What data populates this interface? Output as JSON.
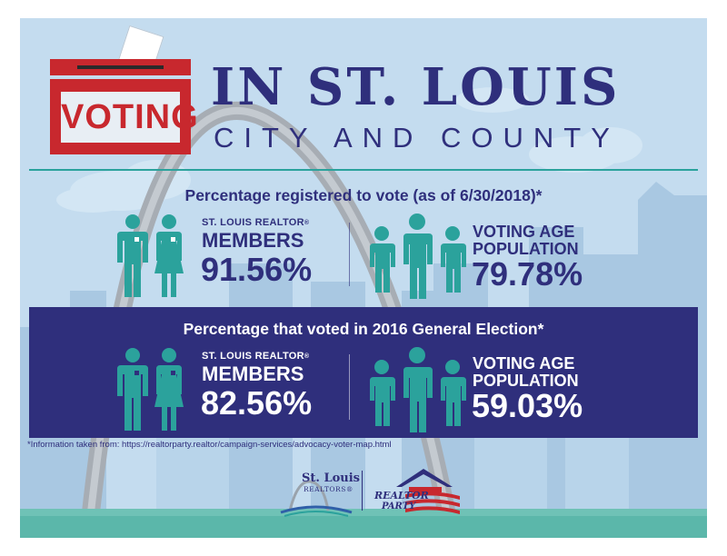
{
  "header": {
    "badge_label": "VOTING",
    "title": "IN ST. LOUIS",
    "subtitle": "CITY AND COUNTY"
  },
  "section_registered": {
    "heading": "Percentage registered to vote (as of 6/30/2018)*",
    "members": {
      "label_top": "ST. LOUIS REALTOR",
      "label_mark": "®",
      "label_main": "MEMBERS",
      "value": "91.56%"
    },
    "population": {
      "label_top": "VOTING AGE",
      "label_main": "POPULATION",
      "value": "79.78%"
    }
  },
  "section_voted": {
    "heading": "Percentage that voted in 2016 General Election*",
    "members": {
      "label_top": "ST. LOUIS REALTOR",
      "label_mark": "®",
      "label_main": "MEMBERS",
      "value": "82.56%"
    },
    "population": {
      "label_top": "VOTING AGE",
      "label_main": "POPULATION",
      "value": "59.03%"
    }
  },
  "footnote": "*Information taken from: https://realtorparty.realtor/campaign-services/advocacy-voter-map.html",
  "logos": {
    "stl_name": "St. Louis",
    "stl_sub": "REALTORS®",
    "rp_word1": "REALTOR",
    "rp_word2": "PARTY"
  },
  "colors": {
    "navy": "#2f2f7c",
    "teal": "#2ba29c",
    "red": "#c8282e",
    "sky": "#c4dcef"
  },
  "icons": [
    "ballot-box-icon",
    "businessman-icon",
    "businesswoman-icon",
    "group-of-people-icon",
    "gateway-arch-icon",
    "house-flag-icon"
  ]
}
